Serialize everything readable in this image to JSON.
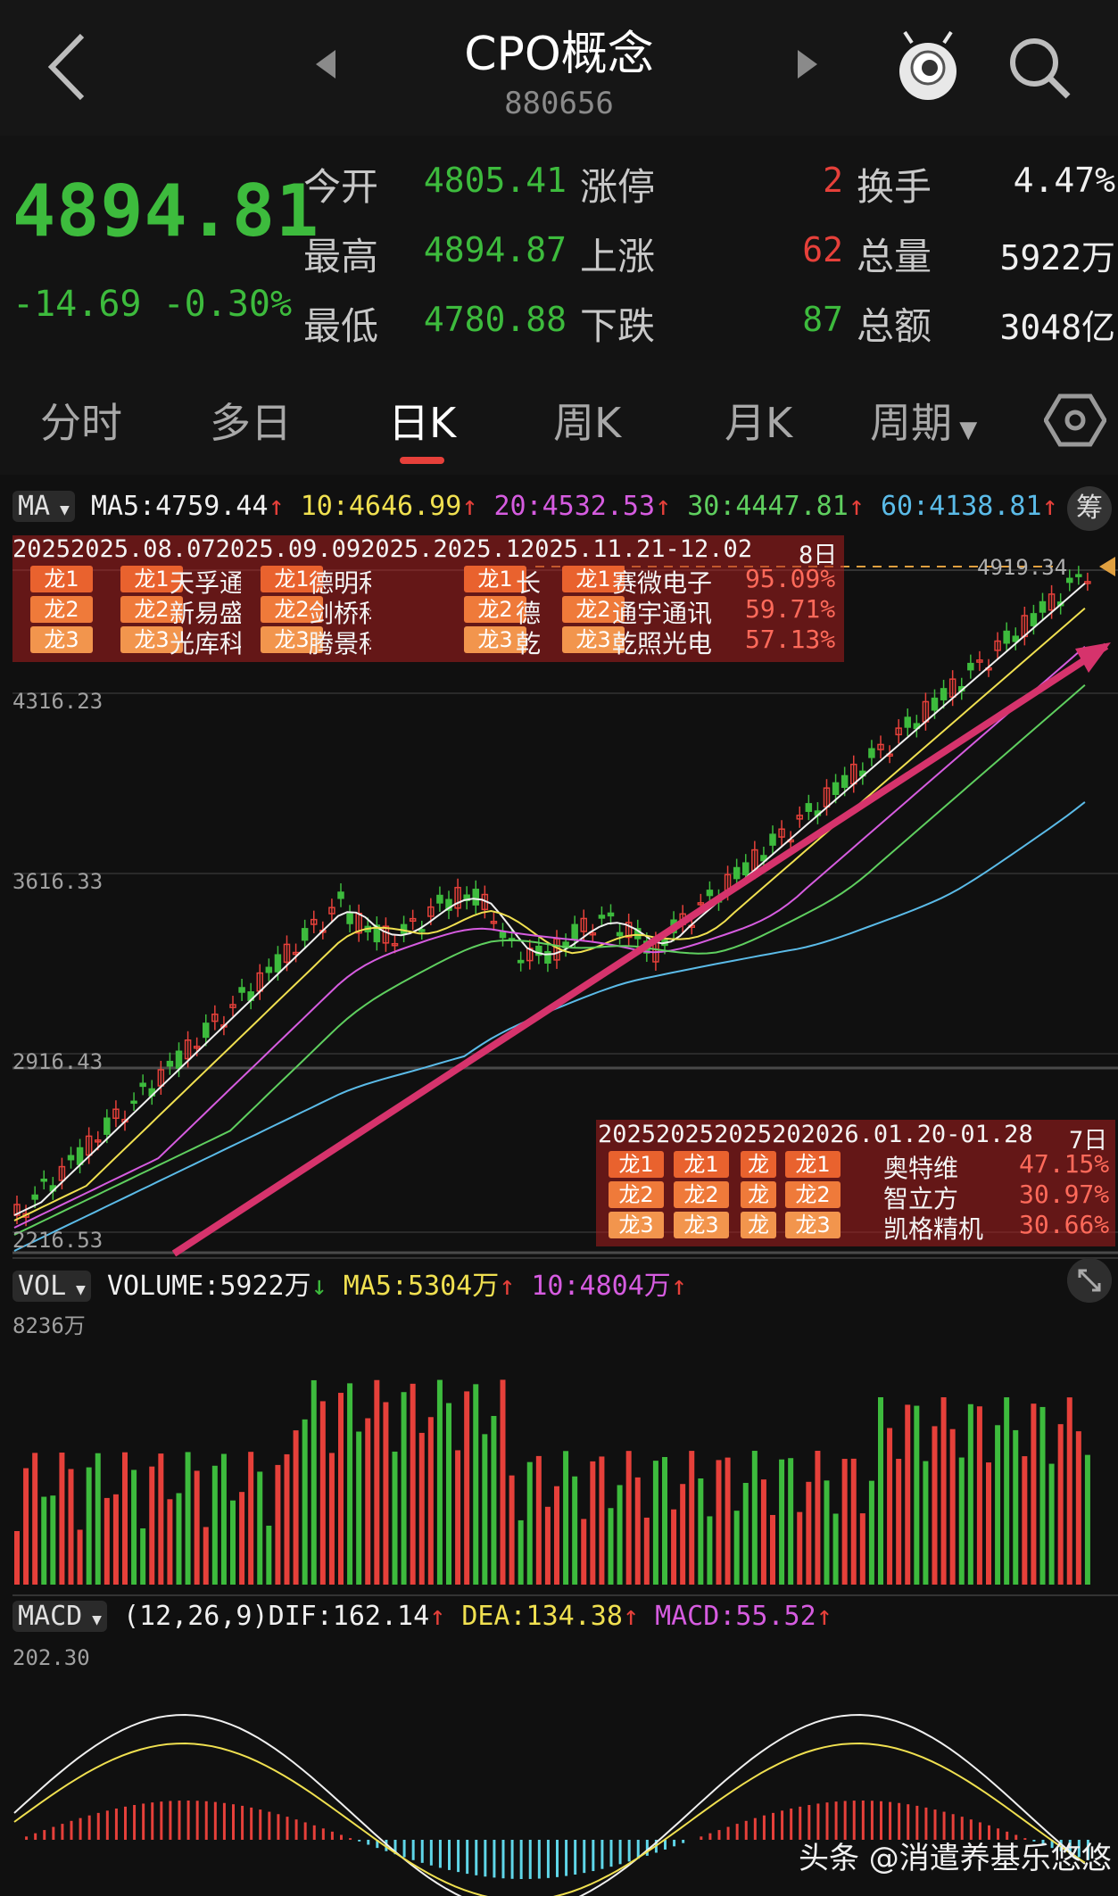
{
  "header": {
    "title": "CPO概念",
    "code": "880656"
  },
  "quote": {
    "price": "4894.81",
    "change": "-14.69",
    "change_pct": "-0.30%",
    "rows": [
      {
        "label": "今开",
        "value": "4805.41",
        "label2": "涨停",
        "value2": "2",
        "label3": "换手",
        "value3": "4.47%"
      },
      {
        "label": "最高",
        "value": "4894.87",
        "label2": "上涨",
        "value2": "62",
        "label3": "总量",
        "value3": "5922万"
      },
      {
        "label": "最低",
        "value": "4780.88",
        "label2": "下跌",
        "value2": "87",
        "label3": "总额",
        "value3": "3048亿"
      }
    ]
  },
  "tabs": [
    "分时",
    "多日",
    "日K",
    "周K",
    "月K",
    "周期"
  ],
  "ma_bar": {
    "name": "MA",
    "ma5": "MA5:4759.44",
    "ma10": "10:4646.99",
    "ma20": "20:4532.53",
    "ma30": "30:4447.81",
    "ma60": "60:4138.81",
    "chip": "筹"
  },
  "price_axis": [
    "4316.23",
    "3616.33",
    "2916.43",
    "2216.53"
  ],
  "last_price_tag": "4919.34",
  "dragon_top": {
    "headers": [
      "2025",
      "2025.08.07",
      "2025.09.09",
      "2025.",
      "2025.1",
      "2025.11.21-12.02"
    ],
    "days": "8日",
    "names": [
      "赛微电子",
      "通宇通讯",
      "乾照光电"
    ],
    "pcts": [
      "95.09%",
      "59.71%",
      "57.13%"
    ],
    "col1_names": [
      "天孚通",
      "新易盛",
      "光库科"
    ],
    "col2_names": [
      "德明利",
      "剑桥科",
      "腾景科"
    ],
    "col4_names": [
      "长",
      "德",
      "乾"
    ],
    "tags": [
      "龙1",
      "龙2",
      "龙3"
    ]
  },
  "dragon_bottom": {
    "headers": [
      "2025",
      "2025",
      "2025",
      "20",
      "2026.01.20-01.28"
    ],
    "days": "7日",
    "names": [
      "奥特维",
      "智立方",
      "凯格精机"
    ],
    "pcts": [
      "47.15%",
      "30.97%",
      "30.66%"
    ],
    "tags": [
      "龙1",
      "龙2",
      "龙3"
    ],
    "short_tags": [
      "龙",
      "龙",
      "龙"
    ]
  },
  "vol_bar": {
    "name": "VOL",
    "volume": "VOLUME:5922万",
    "ma5": "MA5:5304万",
    "ma10": "10:4804万",
    "max": "8236万"
  },
  "macd_bar": {
    "name": "MACD",
    "params": "(12,26,9)",
    "dif": "DIF:162.14",
    "dea": "DEA:134.38",
    "macd": "MACD:55.52",
    "max": "202.30"
  },
  "watermark": "头条 @消遣养基乐悠悠",
  "colors": {
    "up": "#e6403a",
    "down": "#3dbb3d",
    "annotation": "#d6336c"
  }
}
